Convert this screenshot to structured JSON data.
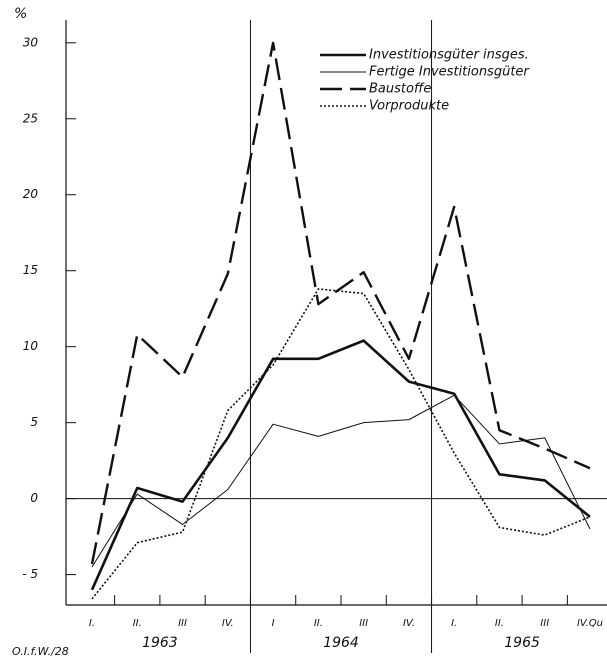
{
  "chart_data": {
    "type": "line",
    "y_label": "%",
    "source": "O.I.f.W./28",
    "categories": [
      "I.",
      "II.",
      "III",
      "IV.",
      "I",
      "II.",
      "III",
      "IV.",
      "I.",
      "II.",
      "III",
      "IV.Qu"
    ],
    "groups": [
      {
        "label": "1963",
        "span": 4
      },
      {
        "label": "1964",
        "span": 4
      },
      {
        "label": "1965",
        "span": 4
      }
    ],
    "series": [
      {
        "name": "Investitionsgüter insges.",
        "color": "#111111",
        "style": "solid",
        "width": 2.6,
        "values": [
          -6,
          0.7,
          -0.2,
          4,
          9.2,
          9.2,
          10.4,
          7.7,
          6.9,
          1.6,
          1.2,
          -1.2
        ]
      },
      {
        "name": "Fertige Investitionsgüter",
        "color": "#111111",
        "style": "solid",
        "width": 1,
        "values": [
          -4.5,
          0.3,
          -1.7,
          0.6,
          4.9,
          4.1,
          5.0,
          5.2,
          6.8,
          3.6,
          4.0,
          -2
        ]
      },
      {
        "name": "Baustoffe",
        "color": "#111111",
        "style": "dashed",
        "width": 2.4,
        "values": [
          -4.3,
          10.8,
          8.0,
          14.8,
          30,
          12.8,
          14.9,
          9.2,
          19.2,
          4.5,
          3.3,
          2.0
        ]
      },
      {
        "name": "Vorprodukte",
        "color": "#111111",
        "style": "dotted",
        "width": 1.6,
        "values": [
          -6.6,
          -2.9,
          -2.2,
          5.8,
          8.8,
          13.8,
          13.5,
          8.5,
          3,
          -1.9,
          -2.4,
          -1.2
        ]
      }
    ],
    "ylim": [
      -7,
      31.5
    ],
    "yticks": [
      {
        "value": -5,
        "label": "- 5"
      },
      0,
      5,
      10,
      15,
      20,
      25,
      30
    ],
    "legend": "upper right"
  }
}
